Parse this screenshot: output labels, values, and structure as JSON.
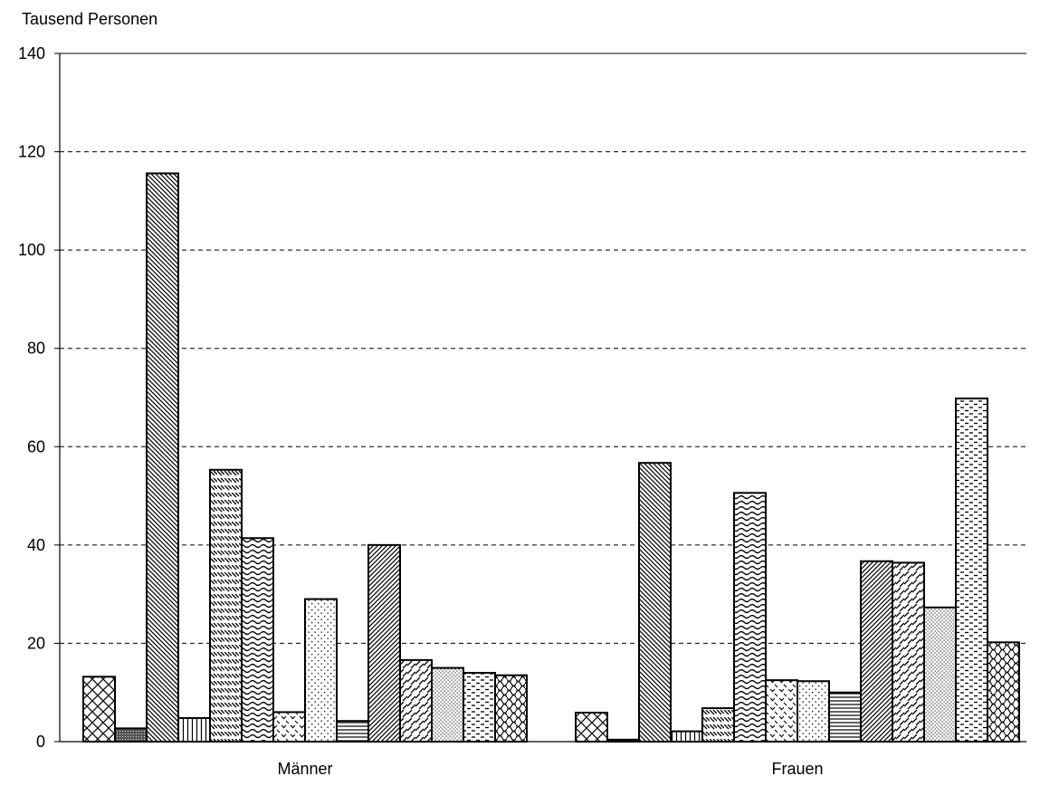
{
  "chart_data": {
    "type": "bar",
    "title": "",
    "ylabel": "Tausend Personen",
    "xlabel": "",
    "ylim": [
      0,
      140
    ],
    "yticks": [
      0,
      20,
      40,
      60,
      80,
      100,
      120,
      140
    ],
    "grid": "horizontal-dashed",
    "legend": "none",
    "categories": [
      "Männer",
      "Frauen"
    ],
    "series": [
      {
        "pattern": "crosshatch",
        "values": [
          13.2,
          5.9
        ]
      },
      {
        "pattern": "dark-fine",
        "values": [
          2.7,
          0.4
        ]
      },
      {
        "pattern": "diag-back-dense",
        "values": [
          115.6,
          56.7
        ]
      },
      {
        "pattern": "vertical-lines",
        "values": [
          4.8,
          2.1
        ]
      },
      {
        "pattern": "diag-back-dashed",
        "values": [
          55.3,
          6.8
        ]
      },
      {
        "pattern": "waves",
        "values": [
          41.4,
          50.6
        ]
      },
      {
        "pattern": "dashed-diag",
        "values": [
          6.0,
          12.5
        ]
      },
      {
        "pattern": "dots-sparse",
        "values": [
          29.0,
          12.3
        ]
      },
      {
        "pattern": "horizontal-lines",
        "values": [
          4.2,
          10.0
        ]
      },
      {
        "pattern": "diag-fwd-dense",
        "values": [
          40.0,
          36.7
        ]
      },
      {
        "pattern": "diag-fwd-dashed",
        "values": [
          16.6,
          36.4
        ]
      },
      {
        "pattern": "dots-dense",
        "values": [
          15.0,
          27.3
        ]
      },
      {
        "pattern": "horizontal-dashes",
        "values": [
          14.0,
          69.8
        ]
      },
      {
        "pattern": "weave",
        "values": [
          13.5,
          20.2
        ]
      }
    ]
  }
}
